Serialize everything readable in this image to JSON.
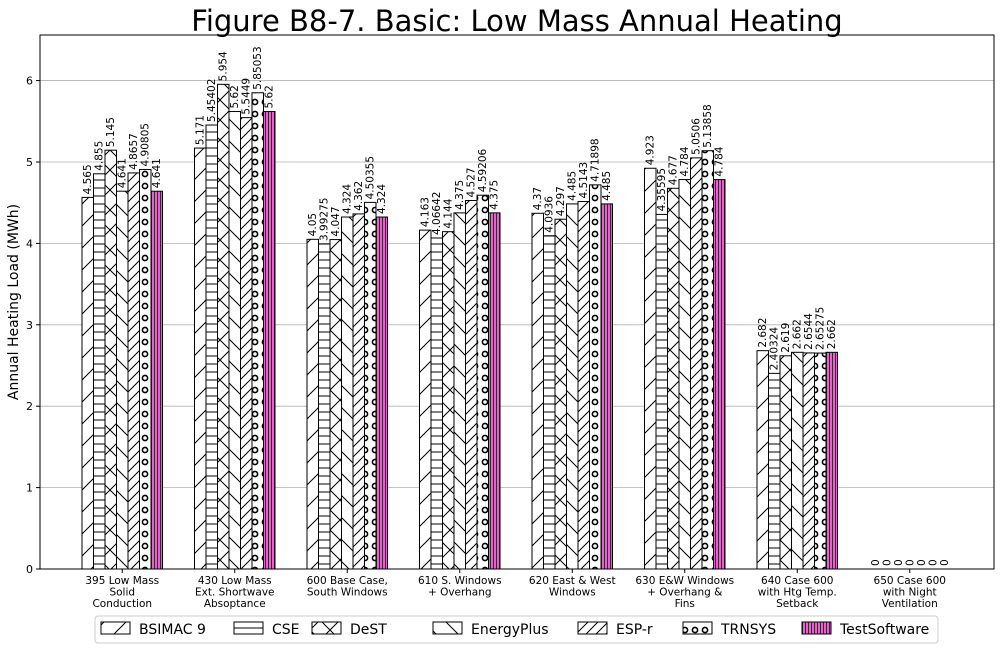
{
  "chart_data": {
    "type": "bar",
    "title": "Figure B8-7.  Basic: Low Mass Annual Heating",
    "ylabel": "Annual Heating Load (MWh)",
    "xlabel": "",
    "ylim": [
      0,
      6.56
    ],
    "yticks": [
      0,
      1,
      2,
      3,
      4,
      5,
      6
    ],
    "grid": "horizontal",
    "legend_position": "bottom",
    "categories": [
      [
        "395 Low Mass",
        "Solid",
        "Conduction"
      ],
      [
        "430 Low Mass",
        "Ext. Shortwave",
        "Absoptance"
      ],
      [
        "600 Base Case,",
        "South Windows"
      ],
      [
        "610 S. Windows",
        "+ Overhang"
      ],
      [
        "620 East & West",
        "Windows"
      ],
      [
        "630 E&W Windows",
        "+ Overhang &",
        "Fins"
      ],
      [
        "640 Case 600",
        "with Htg Temp.",
        "Setback"
      ],
      [
        "650 Case 600",
        "with Night",
        "Ventilation"
      ]
    ],
    "series": [
      {
        "name": "BSIMAC 9",
        "pattern": "slash",
        "values": [
          4.565,
          5.171,
          4.05,
          4.163,
          4.37,
          4.923,
          2.682,
          0
        ],
        "labels": [
          "4.565",
          "5.171",
          "4.05",
          "4.163",
          "4.37",
          "4.923",
          "2.682",
          "0"
        ]
      },
      {
        "name": "CSE",
        "pattern": "hlines",
        "values": [
          4.855,
          5.45402,
          3.99275,
          4.06642,
          4.0936,
          4.35595,
          2.40324,
          0
        ],
        "labels": [
          "4.855",
          "5.45402",
          "3.99275",
          "4.06642",
          "4.0936",
          "4.35595",
          "2.40324",
          "0"
        ]
      },
      {
        "name": "DeST",
        "pattern": "crosshatch",
        "values": [
          5.145,
          5.954,
          4.047,
          4.144,
          4.297,
          4.677,
          2.619,
          0
        ],
        "labels": [
          "5.145",
          "5.954",
          "4.047",
          "4.144",
          "4.297",
          "4.677",
          "2.619",
          "0"
        ]
      },
      {
        "name": "EnergyPlus",
        "pattern": "backslash",
        "values": [
          4.641,
          5.62,
          4.324,
          4.375,
          4.485,
          4.784,
          2.662,
          0
        ],
        "labels": [
          "4.641",
          "5.62",
          "4.324",
          "4.375",
          "4.485",
          "4.784",
          "2.662",
          "0"
        ]
      },
      {
        "name": "ESP-r",
        "pattern": "dslash",
        "values": [
          4.8657,
          5.5449,
          4.362,
          4.527,
          4.5143,
          5.0506,
          2.6544,
          0
        ],
        "labels": [
          "4.8657",
          "5.5449",
          "4.362",
          "4.527",
          "4.5143",
          "5.0506",
          "2.6544",
          "0"
        ]
      },
      {
        "name": "TRNSYS",
        "pattern": "circles",
        "values": [
          4.90805,
          5.85053,
          4.50355,
          4.59206,
          4.71898,
          5.13858,
          2.65275,
          0
        ],
        "labels": [
          "4.90805",
          "5.85053",
          "4.50355",
          "4.59206",
          "4.71898",
          "5.13858",
          "2.65275",
          "0"
        ]
      },
      {
        "name": "TestSoftware",
        "pattern": "vlines",
        "color": "#e066c8",
        "values": [
          4.641,
          5.62,
          4.324,
          4.375,
          4.485,
          4.784,
          2.662,
          0
        ],
        "labels": [
          "4.641",
          "5.62",
          "4.324",
          "4.375",
          "4.485",
          "4.784",
          "2.662",
          "0"
        ]
      }
    ]
  }
}
